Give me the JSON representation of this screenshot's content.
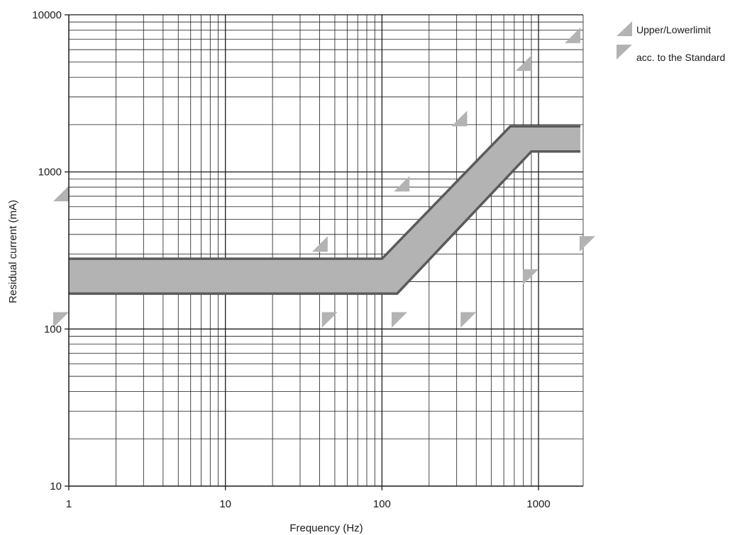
{
  "chart_data": {
    "type": "area",
    "xlabel": "Frequency (Hz)",
    "ylabel": "Residual current (mA)",
    "x_scale": "log",
    "y_scale": "log",
    "xlim": [
      1,
      1850
    ],
    "ylim": [
      10,
      10000
    ],
    "grid": true,
    "x_ticks": [
      {
        "value": 1,
        "label": "1"
      },
      {
        "value": 10,
        "label": "10"
      },
      {
        "value": 100,
        "label": "100"
      },
      {
        "value": 1000,
        "label": "1000"
      }
    ],
    "y_ticks": [
      {
        "value": 10,
        "label": "10"
      },
      {
        "value": 100,
        "label": "100"
      },
      {
        "value": 1000,
        "label": "1000"
      },
      {
        "value": 10000,
        "label": "10000"
      }
    ],
    "band": {
      "upper": {
        "x": [
          1,
          100,
          660,
          1850
        ],
        "y": [
          280,
          280,
          1950,
          1950
        ]
      },
      "lower": {
        "x": [
          1,
          125,
          900,
          1850
        ],
        "y": [
          168,
          168,
          1350,
          1350
        ]
      },
      "fill_color": "#b3b3b3",
      "line_color": "#5a5a5a"
    },
    "upper_limit_markers": [
      {
        "x": 1,
        "y": 650
      },
      {
        "x": 45,
        "y": 310
      },
      {
        "x": 150,
        "y": 750
      },
      {
        "x": 350,
        "y": 1950
      },
      {
        "x": 900,
        "y": 4400
      },
      {
        "x": 1850,
        "y": 6600
      }
    ],
    "lower_limit_markers": [
      {
        "x": 1,
        "y": 128
      },
      {
        "x": 52,
        "y": 128
      },
      {
        "x": 145,
        "y": 128
      },
      {
        "x": 400,
        "y": 128
      },
      {
        "x": 1000,
        "y": 240
      },
      {
        "x": 2300,
        "y": 390
      }
    ],
    "marker_color": "#b3b3b3",
    "legend": {
      "position": "top-right",
      "entries": [
        {
          "label": "Upper/Lowerlimit",
          "icon": "upper-limit-triangle"
        },
        {
          "label": "acc. to the Standard",
          "icon": "lower-limit-triangle"
        }
      ]
    }
  }
}
